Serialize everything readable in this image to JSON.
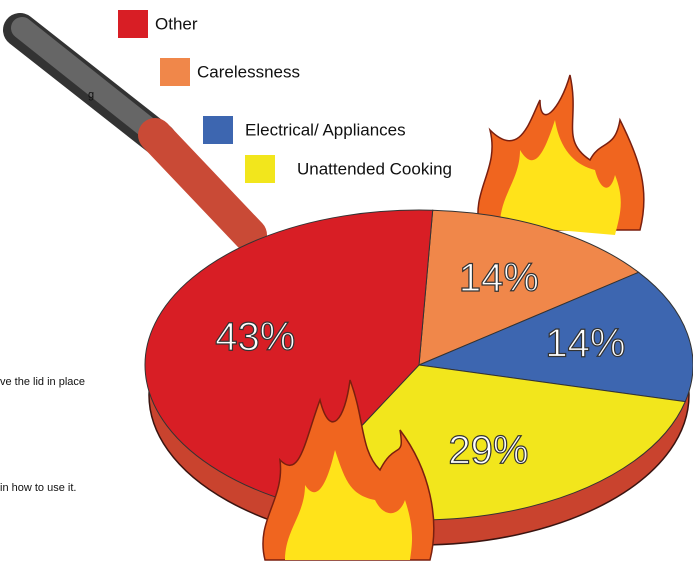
{
  "chart_data": {
    "type": "pie",
    "categories": [
      "Other",
      "Carelessness",
      "Electrical/ Appliances",
      "Unattended Cooking"
    ],
    "values": [
      43,
      14,
      14,
      29
    ],
    "value_labels": [
      "43%",
      "14%",
      "14%",
      "29%"
    ],
    "colors": [
      "#d81e25",
      "#f0874a",
      "#3d66b0",
      "#f2e61c"
    ],
    "annotations": [
      "g",
      "ve the lid in place",
      "in how to use it."
    ]
  }
}
